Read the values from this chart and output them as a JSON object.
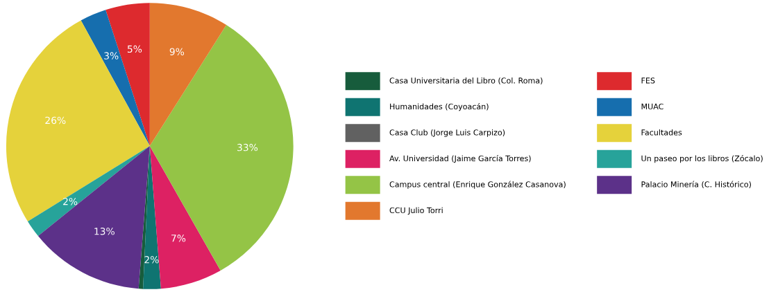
{
  "chart_data": {
    "type": "pie",
    "categories": [
      "Casa Universitaria del Libro (Col. Roma)",
      "Humanidades (Coyoacán)",
      "Casa Club (Jorge Luis Carpizo)",
      "Av. Universidad (Jaime García Torres)",
      "Campus central (Enrique González Casanova)",
      "CCU Julio Torri",
      "FES",
      "MUAC",
      "Facultades",
      "Un paseo por los libros (Zócalo)",
      "Palacio Minería (C. Histórico)"
    ],
    "values": [
      0.5,
      2,
      0,
      7,
      33,
      9,
      5,
      3,
      26,
      2,
      13
    ],
    "colors": [
      "#175c3c",
      "#0f7471",
      "#616161",
      "#dd2163",
      "#94c446",
      "#e2782e",
      "#dd2a2e",
      "#166eae",
      "#e5d23b",
      "#27a39a",
      "#5c3189"
    ],
    "value_labels": [
      null,
      "2%",
      null,
      "7%",
      "33%",
      "9%",
      "5%",
      "3%",
      "26%",
      "2%",
      "13%"
    ],
    "legend": "right"
  }
}
